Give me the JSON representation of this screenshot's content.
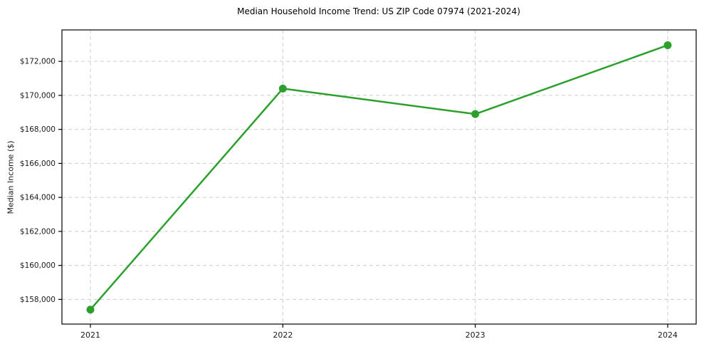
{
  "page": {
    "background_color": "#ffffff"
  },
  "chart_data": {
    "type": "line",
    "title": "Median Household Income Trend: US ZIP Code 07974 (2021-2024)",
    "xlabel": "",
    "ylabel": "Median Income ($)",
    "x": [
      2021,
      2022,
      2023,
      2024
    ],
    "x_tick_labels": [
      "2021",
      "2022",
      "2023",
      "2024"
    ],
    "series": [
      {
        "name": "median-household-income",
        "values": [
          157400,
          170400,
          168900,
          172950
        ],
        "color": "#2ca02c",
        "marker": "circle",
        "line_width": 2.5,
        "marker_radius": 5.5
      }
    ],
    "ylim": [
      156550,
      173850
    ],
    "yticks": [
      {
        "value": 158000,
        "label": "$158,000"
      },
      {
        "value": 160000,
        "label": "$160,000"
      },
      {
        "value": 162000,
        "label": "$162,000"
      },
      {
        "value": 164000,
        "label": "$164,000"
      },
      {
        "value": 166000,
        "label": "$166,000"
      },
      {
        "value": 168000,
        "label": "$168,000"
      },
      {
        "value": 170000,
        "label": "$170,000"
      },
      {
        "value": 172000,
        "label": "$172,000"
      }
    ],
    "grid": true,
    "grid_style": "dashed",
    "grid_color": "#cccccc",
    "legend_position": "none",
    "axis_color": "#000000",
    "tick_label_color": "#1a1a1a"
  }
}
